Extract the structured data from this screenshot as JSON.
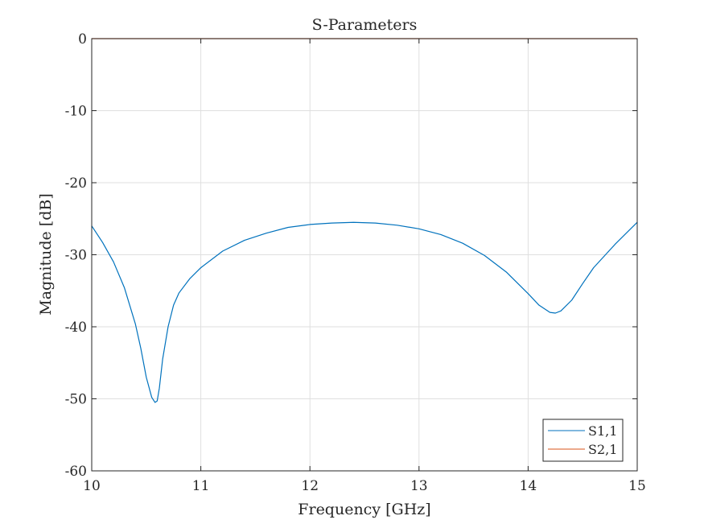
{
  "chart_data": {
    "type": "line",
    "title": "S-Parameters",
    "xlabel": "Frequency [GHz]",
    "ylabel": "Magnitude [dB]",
    "xlim": [
      10,
      15
    ],
    "ylim": [
      -60,
      0
    ],
    "xticks": [
      10,
      11,
      12,
      13,
      14,
      15
    ],
    "yticks": [
      0,
      -10,
      -20,
      -30,
      -40,
      -50,
      -60
    ],
    "xtick_labels": [
      "10",
      "11",
      "12",
      "13",
      "14",
      "15"
    ],
    "ytick_labels": [
      "0",
      "-10",
      "-20",
      "-30",
      "-40",
      "-50",
      "-60"
    ],
    "grid": true,
    "legend_position": "bottom-right",
    "series": [
      {
        "name": "S1,1",
        "color": "#0072bd",
        "x": [
          10.0,
          10.1,
          10.2,
          10.3,
          10.4,
          10.45,
          10.5,
          10.55,
          10.58,
          10.6,
          10.62,
          10.65,
          10.7,
          10.75,
          10.8,
          10.9,
          11.0,
          11.2,
          11.4,
          11.6,
          11.8,
          12.0,
          12.2,
          12.4,
          12.6,
          12.8,
          13.0,
          13.2,
          13.4,
          13.6,
          13.8,
          14.0,
          14.1,
          14.2,
          14.25,
          14.3,
          14.4,
          14.5,
          14.6,
          14.8,
          15.0
        ],
        "y": [
          -26.0,
          -28.3,
          -31.0,
          -34.6,
          -39.6,
          -43.0,
          -47.0,
          -49.8,
          -50.5,
          -50.3,
          -48.5,
          -44.5,
          -40.0,
          -37.0,
          -35.3,
          -33.3,
          -31.8,
          -29.5,
          -28.0,
          -27.0,
          -26.2,
          -25.8,
          -25.6,
          -25.5,
          -25.6,
          -25.9,
          -26.4,
          -27.2,
          -28.4,
          -30.1,
          -32.4,
          -35.4,
          -37.0,
          -38.0,
          -38.1,
          -37.8,
          -36.3,
          -34.0,
          -31.8,
          -28.5,
          -25.5
        ]
      },
      {
        "name": "S2,1",
        "color": "#d95319",
        "x": [
          10.0,
          15.0
        ],
        "y": [
          0,
          0
        ]
      }
    ]
  }
}
